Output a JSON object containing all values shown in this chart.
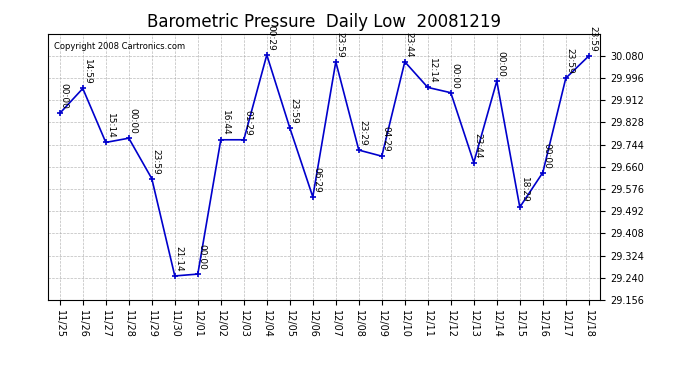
{
  "title": "Barometric Pressure  Daily Low  20081219",
  "copyright": "Copyright 2008 Cartronics.com",
  "x_labels": [
    "11/25",
    "11/26",
    "11/27",
    "11/28",
    "11/29",
    "11/30",
    "12/01",
    "12/02",
    "12/03",
    "12/04",
    "12/05",
    "12/06",
    "12/07",
    "12/08",
    "12/09",
    "12/10",
    "12/11",
    "12/12",
    "12/13",
    "12/14",
    "12/15",
    "12/16",
    "12/17",
    "12/18"
  ],
  "y_values": [
    29.862,
    29.956,
    29.752,
    29.768,
    29.615,
    29.247,
    29.254,
    29.762,
    29.762,
    30.083,
    29.807,
    29.546,
    30.057,
    29.723,
    29.7,
    30.057,
    29.96,
    29.94,
    29.676,
    29.984,
    29.507,
    29.638,
    29.995,
    30.079
  ],
  "point_labels": [
    "00:00",
    "14:59",
    "15:14",
    "00:00",
    "23:59",
    "21:14",
    "00:00",
    "16:44",
    "01:29",
    "00:29",
    "23:59",
    "06:29",
    "23:59",
    "23:29",
    "04:29",
    "23:44",
    "12:14",
    "00:00",
    "23:44",
    "00:00",
    "18:29",
    "00:00",
    "23:59",
    "23:59"
  ],
  "line_color": "#0000CC",
  "marker_color": "#0000CC",
  "bg_color": "#FFFFFF",
  "grid_color": "#AAAAAA",
  "ylim_min": 29.156,
  "ylim_max": 30.163,
  "ytick_step": 0.084,
  "title_fontsize": 12,
  "label_fontsize": 7,
  "annot_fontsize": 6.5
}
